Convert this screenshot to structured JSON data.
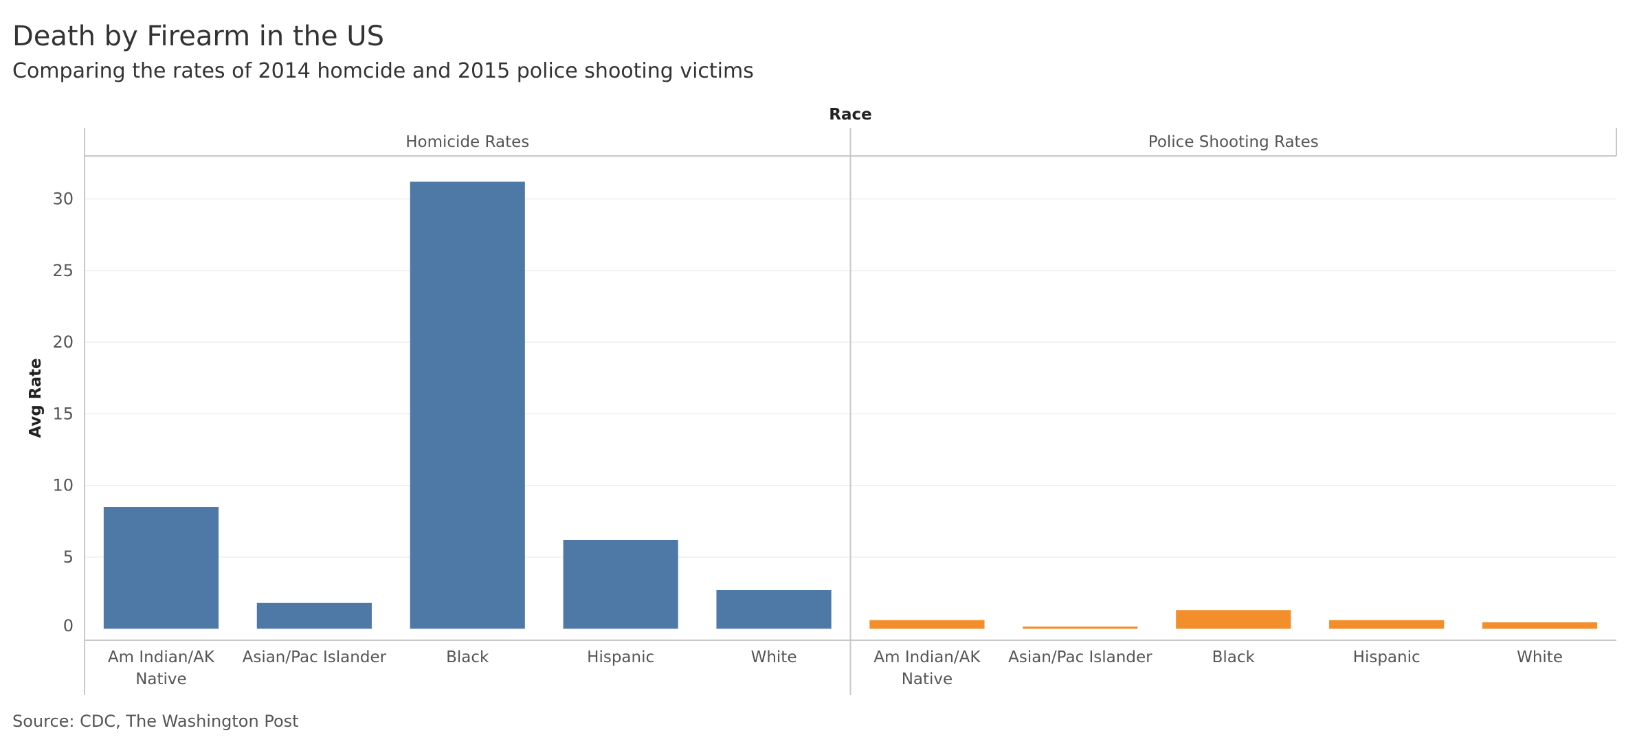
{
  "title": "Death by Firearm in the US",
  "subtitle": "Comparing the rates of 2014 homcide and 2015 police shooting victims",
  "source": "Source: CDC, The Washington Post",
  "chart_data": {
    "type": "bar",
    "top_header": "Race",
    "ylabel": "Avg Rate",
    "ylim": [
      -0.8,
      33
    ],
    "yticks": [
      0,
      5,
      10,
      15,
      20,
      25,
      30
    ],
    "grid": true,
    "panels": [
      {
        "name": "Homicide Rates",
        "color": "#4e79a7",
        "categories": [
          "Am Indian/AK Native",
          "Asian/Pac Islander",
          "Black",
          "Hispanic",
          "White"
        ],
        "category_lines": [
          [
            "Am Indian/AK",
            "Native"
          ],
          [
            "Asian/Pac Islander"
          ],
          [
            "Black"
          ],
          [
            "Hispanic"
          ],
          [
            "White"
          ]
        ],
        "values": [
          8.5,
          1.8,
          31.2,
          6.2,
          2.7
        ]
      },
      {
        "name": "Police Shooting Rates",
        "color": "#f28e2b",
        "categories": [
          "Am Indian/AK Native",
          "Asian/Pac Islander",
          "Black",
          "Hispanic",
          "White"
        ],
        "category_lines": [
          [
            "Am Indian/AK",
            "Native"
          ],
          [
            "Asian/Pac Islander"
          ],
          [
            "Black"
          ],
          [
            "Hispanic"
          ],
          [
            "White"
          ]
        ],
        "values": [
          0.6,
          0.15,
          1.3,
          0.6,
          0.45
        ]
      }
    ]
  }
}
